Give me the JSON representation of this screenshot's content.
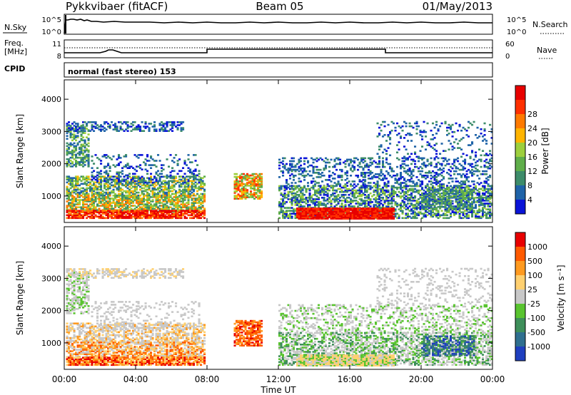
{
  "header": {
    "station": "Pykkvibaer (fitACF)",
    "beam": "Beam 05",
    "date": "01/May/2013"
  },
  "nsky_panel": {
    "left_label": "N.Sky",
    "right_label": "N.Search",
    "ticks_left": [
      "10^5",
      "10^0"
    ],
    "ticks_right": [
      "10^5",
      "10^0"
    ]
  },
  "freq_panel": {
    "left_label_line1": "Freq.",
    "left_label_line2": "[MHz]",
    "right_label": "Nave",
    "ticks_left": [
      "11",
      "8"
    ],
    "ticks_right": [
      "60",
      "0"
    ],
    "freq_steps": [
      {
        "from_hour": 0,
        "to_hour": 8,
        "level": 10.0
      },
      {
        "from_hour": 8,
        "to_hour": 18,
        "level": 11.4
      },
      {
        "from_hour": 18,
        "to_hour": 24,
        "level": 10.0
      }
    ]
  },
  "cpid": {
    "label": "CPID",
    "text": "normal (fast stereo) 153"
  },
  "chart_data": [
    {
      "type": "heatmap",
      "name": "power",
      "ylabel": "Slant Range [km]",
      "yticks": [
        "1000",
        "2000",
        "3000",
        "4000"
      ],
      "ytick_values": [
        1000,
        2000,
        3000,
        4000
      ],
      "ylim": [
        180,
        4600
      ],
      "xlim": [
        0,
        24
      ],
      "colorbar": {
        "label": "Power [dB]",
        "ticks": [
          "4",
          "8",
          "12",
          "16",
          "20",
          "24",
          "28"
        ],
        "colors": [
          "#0a14d8",
          "#1f63a8",
          "#3d8c6a",
          "#5fae4a",
          "#9dcf3d",
          "#ffb400",
          "#ff7a00",
          "#ff3000",
          "#e80000"
        ]
      }
    },
    {
      "type": "heatmap",
      "name": "velocity",
      "ylabel": "Slant Range [km]",
      "yticks": [
        "1000",
        "2000",
        "3000",
        "4000"
      ],
      "ytick_values": [
        1000,
        2000,
        3000,
        4000
      ],
      "ylim": [
        180,
        4600
      ],
      "xlim": [
        0,
        24
      ],
      "colorbar": {
        "label": "Velocity [m s⁻¹]",
        "ticks": [
          "1000",
          "500",
          "100",
          "25",
          "-25",
          "-100",
          "-500",
          "-1000"
        ],
        "colors": [
          "#1f3fbf",
          "#2f6f8f",
          "#3e8f5a",
          "#59c42f",
          "#c8c8c8",
          "#ffd070",
          "#ff9a20",
          "#ff5a00",
          "#e80000"
        ]
      }
    }
  ],
  "xaxis": {
    "label": "Time UT",
    "ticks": [
      "00:00",
      "04:00",
      "08:00",
      "12:00",
      "16:00",
      "20:00",
      "00:00"
    ],
    "tick_hours": [
      0,
      4,
      8,
      12,
      16,
      20,
      24
    ]
  }
}
